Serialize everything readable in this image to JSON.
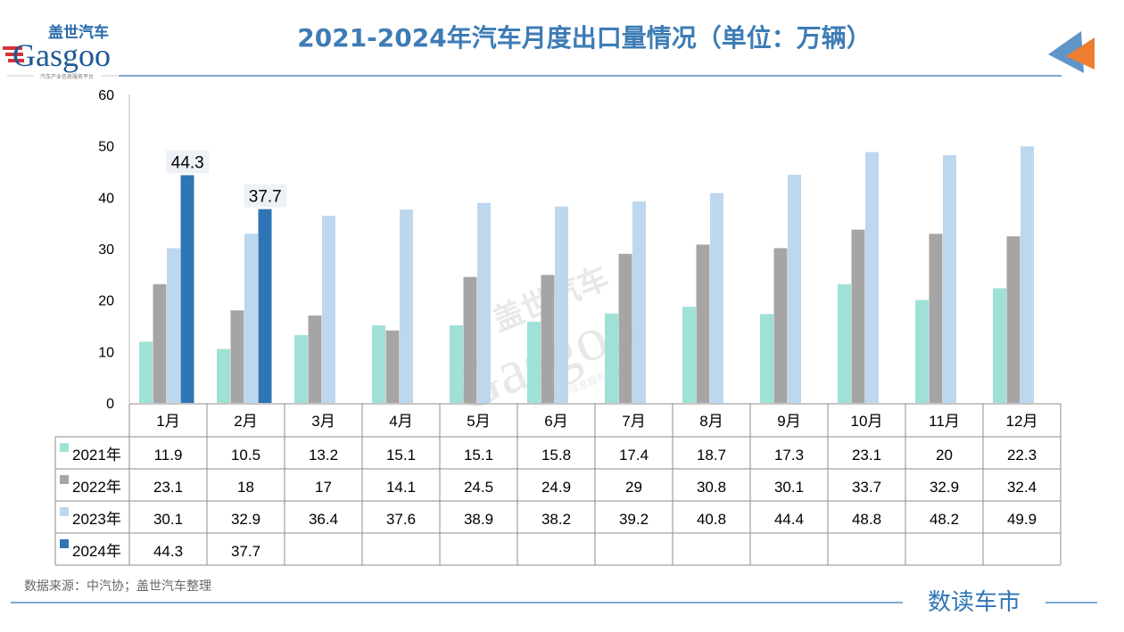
{
  "header": {
    "title": "2021-2024年汽车月度出口量情况（单位：万辆）",
    "logo_cn": "盖世汽车",
    "logo_en": "Gasgoo",
    "logo_tagline": "汽车产业信息服务平台"
  },
  "footer": {
    "source": "数据来源：中汽协；盖世汽车整理",
    "brand": "数读车市"
  },
  "watermark": {
    "cn": "盖世汽车",
    "en": "Gasgoo",
    "tagline": "汽车产业信息服务平台"
  },
  "chart_data": {
    "type": "bar",
    "title": "2021-2024年汽车月度出口量情况（单位：万辆）",
    "categories": [
      "1月",
      "2月",
      "3月",
      "4月",
      "5月",
      "6月",
      "7月",
      "8月",
      "9月",
      "10月",
      "11月",
      "12月"
    ],
    "ylim": [
      0,
      60
    ],
    "yticks": [
      0,
      10,
      20,
      30,
      40,
      50,
      60
    ],
    "grid": false,
    "legend": "data-table",
    "series": [
      {
        "name": "2021年",
        "color": "#9fe1d7",
        "values": [
          11.9,
          10.5,
          13.2,
          15.1,
          15.1,
          15.8,
          17.4,
          18.7,
          17.3,
          23.1,
          20,
          22.3
        ]
      },
      {
        "name": "2022年",
        "color": "#a5a5a5",
        "values": [
          23.1,
          18,
          17,
          14.1,
          24.5,
          24.9,
          29,
          30.8,
          30.1,
          33.7,
          32.9,
          32.4
        ]
      },
      {
        "name": "2023年",
        "color": "#bdd7ee",
        "values": [
          30.1,
          32.9,
          36.4,
          37.6,
          38.9,
          38.2,
          39.2,
          40.8,
          44.4,
          48.8,
          48.2,
          49.9
        ]
      },
      {
        "name": "2024年",
        "color": "#2e75b6",
        "values": [
          44.3,
          37.7,
          null,
          null,
          null,
          null,
          null,
          null,
          null,
          null,
          null,
          null
        ]
      }
    ],
    "data_labels": {
      "series": "2024年",
      "values": [
        "44.3",
        "37.7"
      ]
    }
  }
}
